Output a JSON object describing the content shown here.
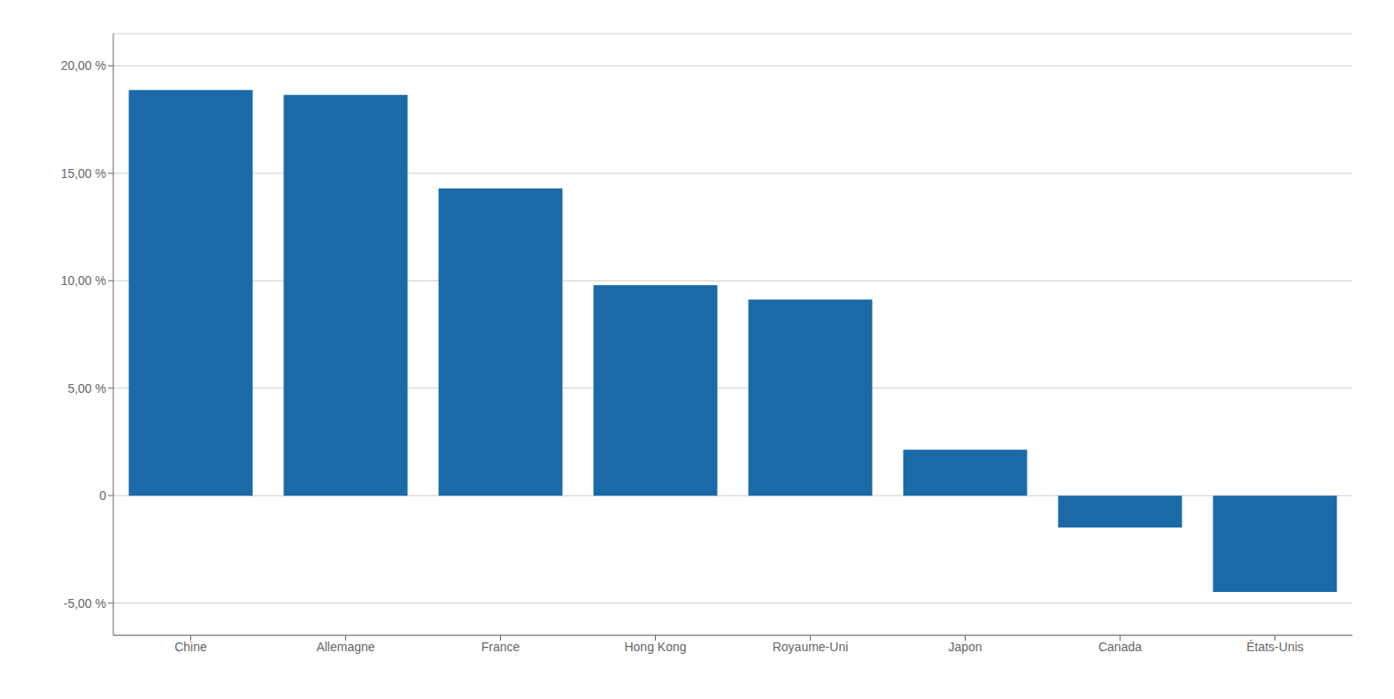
{
  "chart_data": {
    "type": "bar",
    "categories": [
      "Chine",
      "Allemagne",
      "France",
      "Hong Kong",
      "Royaume-Uni",
      "Japon",
      "Canada",
      "États-Unis"
    ],
    "values": [
      18.87,
      18.65,
      14.29,
      9.8,
      9.13,
      2.14,
      -1.49,
      -4.48
    ],
    "color": "#1a6aa8",
    "ylim": [
      -6.5,
      21.5
    ],
    "yticks": [
      {
        "value": -5,
        "label": "-5,00 %"
      },
      0,
      {
        "value": 5,
        "label": "5,00 %"
      },
      {
        "value": 10,
        "label": "10,00 %"
      },
      {
        "value": 15,
        "label": "15,00 %"
      },
      {
        "value": 20,
        "label": "20,00 %"
      }
    ],
    "grid": true
  }
}
